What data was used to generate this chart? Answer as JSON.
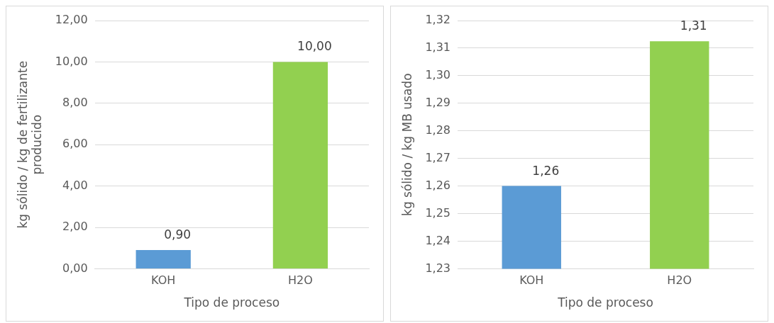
{
  "chart_data": [
    {
      "type": "bar",
      "xlabel": "Tipo de proceso",
      "ylabel": "kg sólido / kg de fertilizante producido",
      "categories": [
        "KOH",
        "H2O"
      ],
      "values": [
        0.9,
        10.0
      ],
      "colors": [
        "#5b9bd5",
        "#92d050"
      ],
      "value_labels": [
        "0,90",
        "10,00"
      ],
      "ylim": [
        0,
        12
      ],
      "yticks": [
        {
          "value": 0,
          "label": "0,00"
        },
        {
          "value": 2,
          "label": "2,00"
        },
        {
          "value": 4,
          "label": "4,00"
        },
        {
          "value": 6,
          "label": "6,00"
        },
        {
          "value": 8,
          "label": "8,00"
        },
        {
          "value": 10,
          "label": "10,00"
        },
        {
          "value": 12,
          "label": "12,00"
        }
      ],
      "grid": "y",
      "legend": false
    },
    {
      "type": "bar",
      "xlabel": "Tipo de proceso",
      "ylabel": "kg sólido / kg MB usado",
      "categories": [
        "KOH",
        "H2O"
      ],
      "values": [
        1.26,
        1.3125
      ],
      "colors": [
        "#5b9bd5",
        "#92d050"
      ],
      "value_labels": [
        "1,26",
        "1,31"
      ],
      "ylim": [
        1.23,
        1.32
      ],
      "yticks": [
        {
          "value": 1.23,
          "label": "1,23"
        },
        {
          "value": 1.24,
          "label": "1,24"
        },
        {
          "value": 1.25,
          "label": "1,25"
        },
        {
          "value": 1.26,
          "label": "1,26"
        },
        {
          "value": 1.27,
          "label": "1,27"
        },
        {
          "value": 1.28,
          "label": "1,28"
        },
        {
          "value": 1.29,
          "label": "1,29"
        },
        {
          "value": 1.3,
          "label": "1,30"
        },
        {
          "value": 1.31,
          "label": "1,31"
        },
        {
          "value": 1.32,
          "label": "1,32"
        }
      ],
      "grid": "y",
      "legend": false
    }
  ]
}
